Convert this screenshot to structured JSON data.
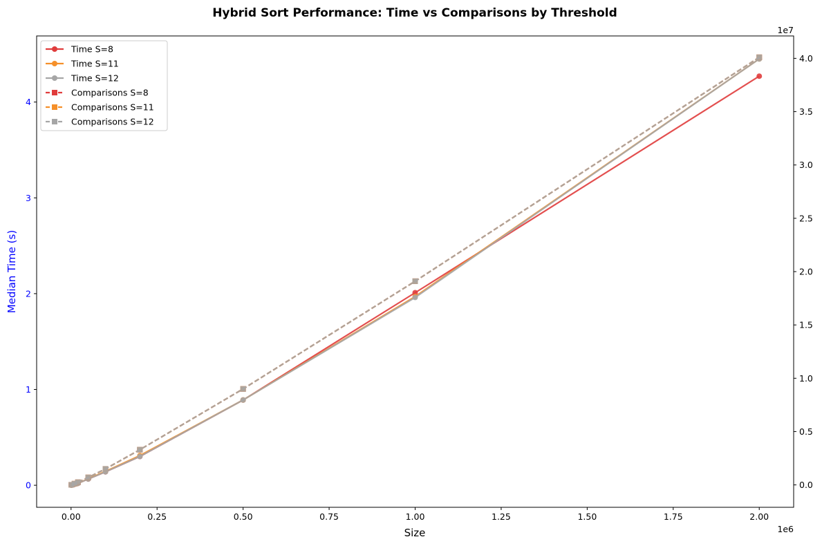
{
  "chart_data": {
    "type": "line",
    "title": "Hybrid Sort Performance: Time vs Comparisons by Threshold",
    "xlabel": "Size",
    "ylabel_left": "Median Time (s)",
    "ylabel_right": "",
    "x_offset_label": "1e6",
    "y_right_offset_label": "1e7",
    "x_ticks": [
      "0.00",
      "0.25",
      "0.50",
      "0.75",
      "1.00",
      "1.25",
      "1.50",
      "1.75",
      "2.00"
    ],
    "y_left_ticks": [
      "0",
      "1",
      "2",
      "3",
      "4"
    ],
    "y_right_ticks": [
      "0.0",
      "0.5",
      "1.0",
      "1.5",
      "2.0",
      "2.5",
      "3.0",
      "3.5",
      "4.0"
    ],
    "xlim": [
      -100000,
      2100000
    ],
    "ylim_left": [
      -0.23,
      4.69
    ],
    "ylim_right": [
      -2100000,
      42100000
    ],
    "x": [
      1000,
      10000,
      20000,
      50000,
      100000,
      200000,
      500000,
      1000000,
      2000000
    ],
    "series": [
      {
        "name": "Time S=8",
        "axis": "left",
        "color": "#e03c3c",
        "style": "solid",
        "marker": "circle",
        "values": [
          0.0005,
          0.01,
          0.02,
          0.065,
          0.14,
          0.3,
          0.89,
          2.01,
          4.27
        ]
      },
      {
        "name": "Time S=11",
        "axis": "left",
        "color": "#f5902a",
        "style": "solid",
        "marker": "circle",
        "values": [
          0.0005,
          0.01,
          0.02,
          0.068,
          0.145,
          0.31,
          0.89,
          1.97,
          4.45
        ]
      },
      {
        "name": "Time S=12",
        "axis": "left",
        "color": "#a6a6a6",
        "style": "solid",
        "marker": "circle",
        "values": [
          0.0005,
          0.01,
          0.02,
          0.065,
          0.14,
          0.3,
          0.89,
          1.96,
          4.45
        ]
      },
      {
        "name": "Comparisons S=8",
        "axis": "right",
        "color": "#e03c3c",
        "style": "dashed",
        "marker": "square",
        "values": [
          9000,
          115000,
          250000,
          700000,
          1500000,
          3300000,
          9000000,
          19100000,
          40100000
        ]
      },
      {
        "name": "Comparisons S=11",
        "axis": "right",
        "color": "#f5902a",
        "style": "dashed",
        "marker": "square",
        "values": [
          9000,
          115000,
          250000,
          700000,
          1500000,
          3300000,
          9000000,
          19100000,
          40100000
        ]
      },
      {
        "name": "Comparisons S=12",
        "axis": "right",
        "color": "#a6a6a6",
        "style": "dashed",
        "marker": "square",
        "values": [
          9000,
          115000,
          250000,
          700000,
          1500000,
          3300000,
          9000000,
          19100000,
          40100000
        ]
      }
    ],
    "left_axis_color": "#0000ff",
    "legend_position": "upper-left",
    "grid": false
  }
}
